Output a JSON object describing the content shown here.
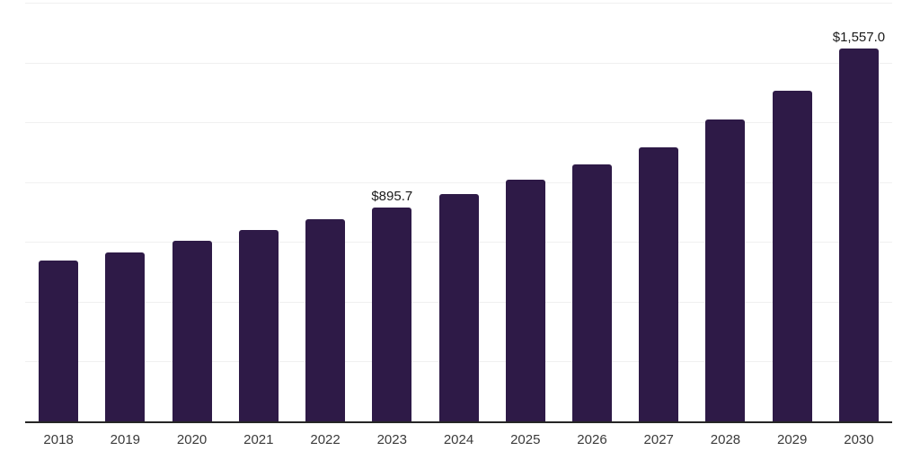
{
  "chart_data": {
    "type": "bar",
    "title": "",
    "categories": [
      "2018",
      "2019",
      "2020",
      "2021",
      "2022",
      "2023",
      "2024",
      "2025",
      "2026",
      "2027",
      "2028",
      "2029",
      "2030"
    ],
    "values": [
      672,
      707,
      755,
      800,
      845,
      895.7,
      951,
      1011,
      1073,
      1146,
      1262,
      1384,
      1557
    ],
    "value_labels": {
      "2023": "$895.7",
      "2030": "$1,557.0"
    },
    "xlabel": "",
    "ylabel": "",
    "ylim": [
      0,
      1750
    ],
    "gridline_step": 250,
    "grid": true,
    "y_axis_tick_labels_visible": false,
    "legend": "none",
    "colors": {
      "bar": "#2e1a47",
      "gridline": "#f0f0f0",
      "axis_line": "#262626",
      "tick_label": "#3a3a3a",
      "value_label": "#1a1a1a",
      "background": "#ffffff"
    }
  }
}
